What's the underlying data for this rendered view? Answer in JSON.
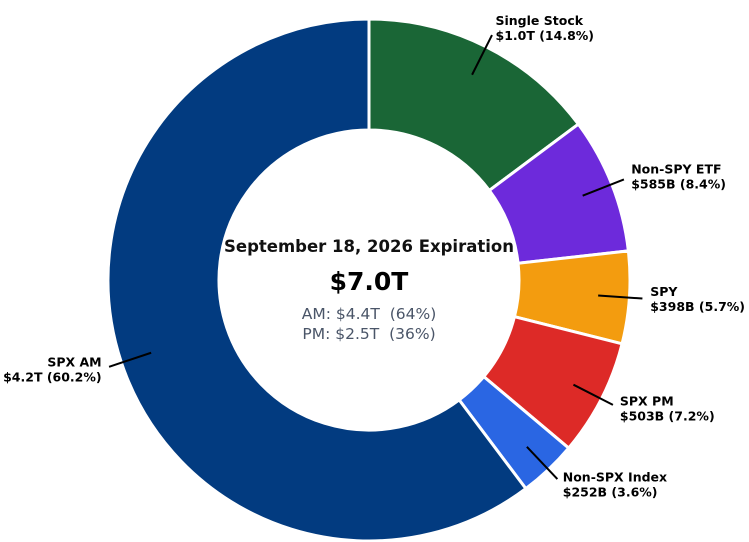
{
  "chart_data": {
    "type": "pie",
    "donut": true,
    "title": "September 18, 2026 Expiration",
    "center": {
      "total": "$7.0T",
      "lines": [
        "AM: $4.4T  (64%)",
        "PM: $2.5T  (36%)"
      ]
    },
    "slices": [
      {
        "label": "Single Stock",
        "value_text": "$1.0T (14.8%)",
        "percent": 14.8,
        "color": "#1a6636"
      },
      {
        "label": "Non-SPY ETF",
        "value_text": "$585B (8.4%)",
        "percent": 8.4,
        "color": "#6d2adb"
      },
      {
        "label": "SPY",
        "value_text": "$398B (5.7%)",
        "percent": 5.7,
        "color": "#f39c0f"
      },
      {
        "label": "SPX PM",
        "value_text": "$503B (7.2%)",
        "percent": 7.2,
        "color": "#dd2a27"
      },
      {
        "label": "Non-SPX Index",
        "value_text": "$252B (3.6%)",
        "percent": 3.6,
        "color": "#2a66e3"
      },
      {
        "label": "SPX AM",
        "value_text": "$4.2T (60.2%)",
        "percent": 60.2,
        "color": "#023b80"
      }
    ]
  }
}
